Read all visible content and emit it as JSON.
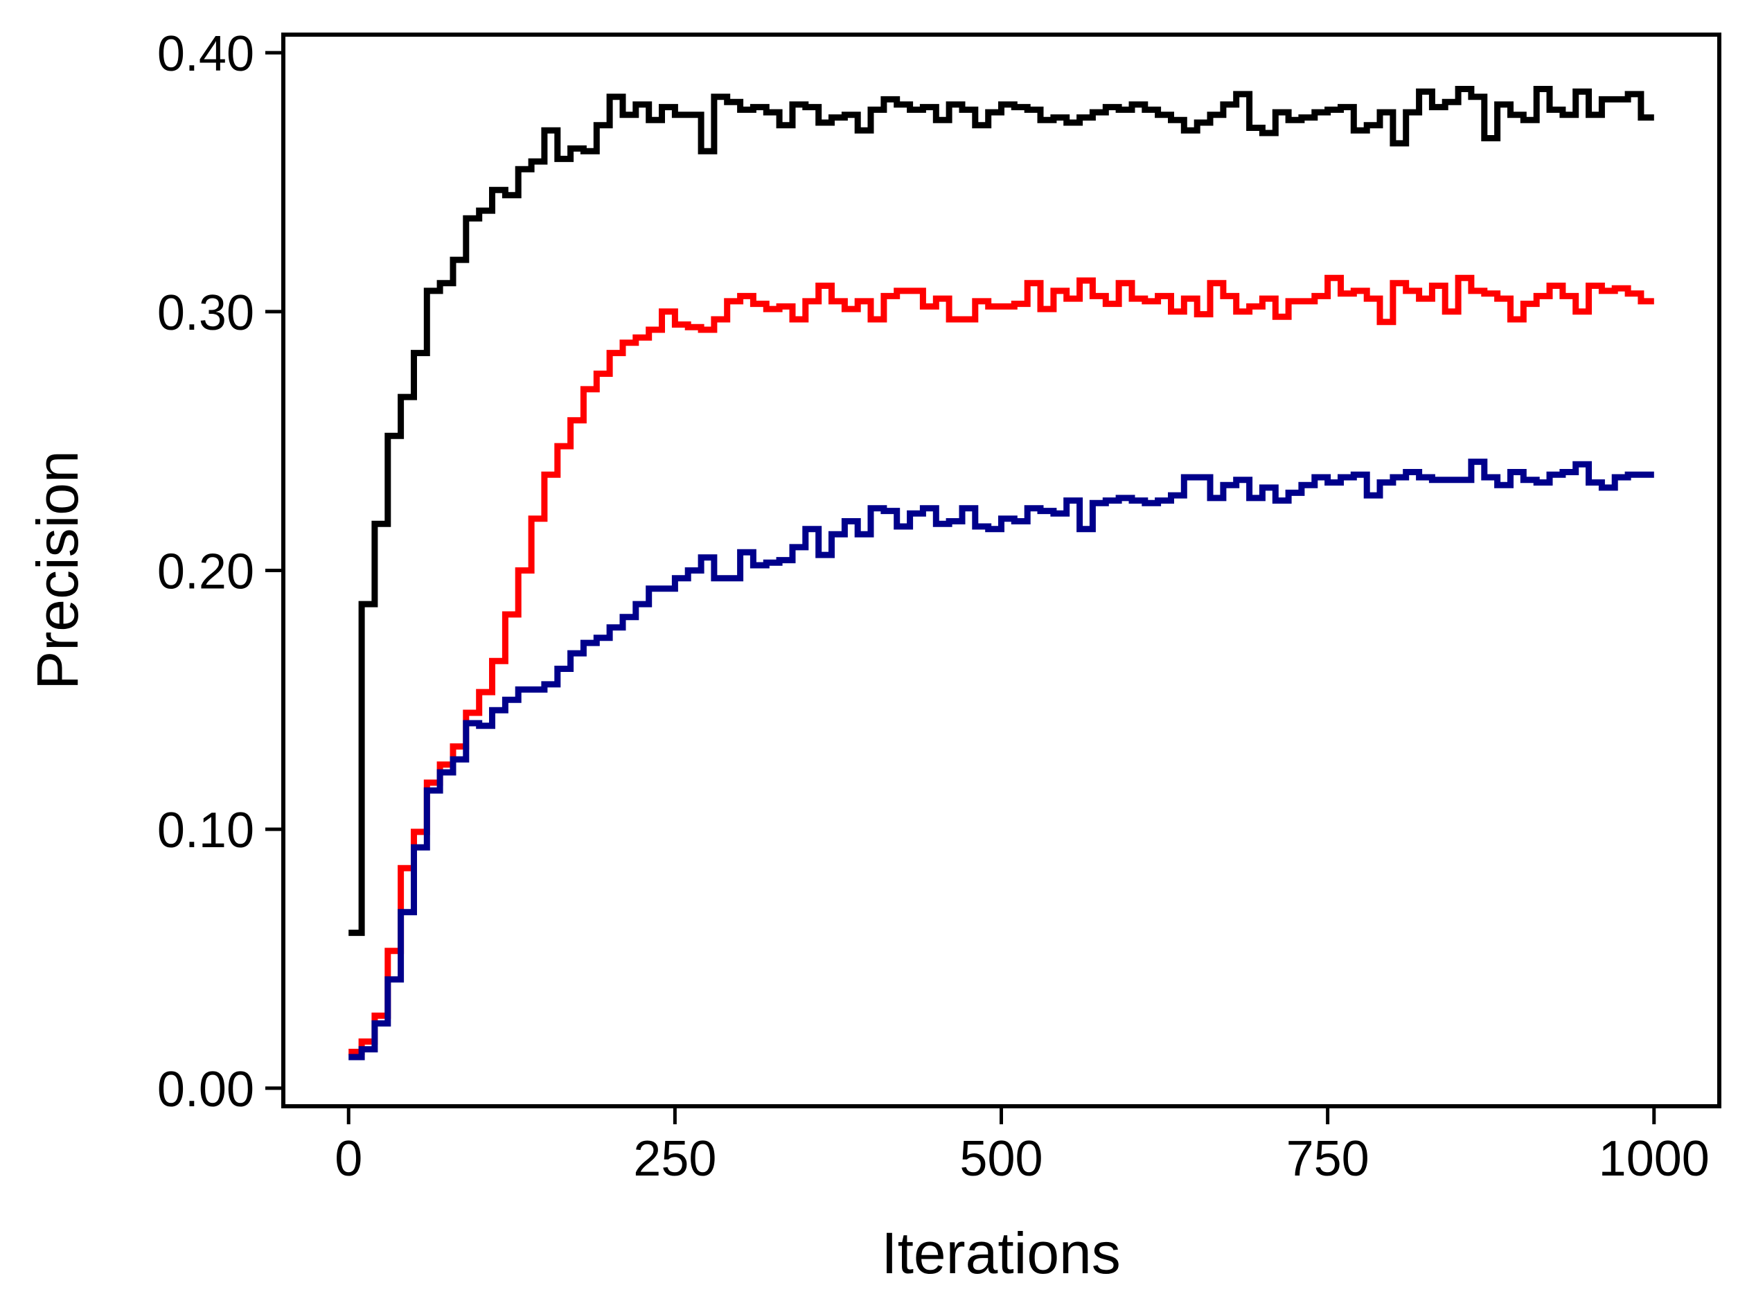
{
  "chart_data": {
    "type": "line",
    "step": true,
    "title": "",
    "xlabel": "Iterations",
    "ylabel": "Precision",
    "xlim": [
      -50,
      1050
    ],
    "ylim": [
      -0.007,
      0.407
    ],
    "grid": false,
    "legend": "none",
    "xticks": [
      0,
      250,
      500,
      750,
      1000
    ],
    "xtick_labels": [
      "0",
      "250",
      "500",
      "750",
      "1000"
    ],
    "yticks": [
      0.0,
      0.1,
      0.2,
      0.3,
      0.4
    ],
    "ytick_labels": [
      "0.00",
      "0.10",
      "0.20",
      "0.30",
      "0.40"
    ],
    "series": [
      {
        "color": "#000000",
        "points": [
          [
            0,
            0.06
          ],
          [
            10,
            0.187
          ],
          [
            20,
            0.218
          ],
          [
            30,
            0.252
          ],
          [
            40,
            0.267
          ],
          [
            50,
            0.284
          ],
          [
            60,
            0.308
          ],
          [
            70,
            0.311
          ],
          [
            80,
            0.32
          ],
          [
            90,
            0.336
          ],
          [
            100,
            0.339
          ],
          [
            110,
            0.347
          ],
          [
            120,
            0.345
          ],
          [
            130,
            0.355
          ],
          [
            140,
            0.358
          ],
          [
            150,
            0.37
          ],
          [
            160,
            0.359
          ],
          [
            170,
            0.363
          ],
          [
            180,
            0.362
          ],
          [
            190,
            0.372
          ],
          [
            200,
            0.383
          ],
          [
            210,
            0.376
          ],
          [
            220,
            0.38
          ],
          [
            230,
            0.374
          ],
          [
            240,
            0.379
          ],
          [
            250,
            0.376
          ],
          [
            270,
            0.362
          ],
          [
            280,
            0.383
          ],
          [
            290,
            0.381
          ],
          [
            300,
            0.378
          ],
          [
            310,
            0.379
          ],
          [
            320,
            0.377
          ],
          [
            330,
            0.372
          ],
          [
            340,
            0.38
          ],
          [
            350,
            0.379
          ],
          [
            360,
            0.373
          ],
          [
            370,
            0.375
          ],
          [
            380,
            0.376
          ],
          [
            390,
            0.37
          ],
          [
            400,
            0.378
          ],
          [
            410,
            0.382
          ],
          [
            420,
            0.38
          ],
          [
            430,
            0.378
          ],
          [
            440,
            0.379
          ],
          [
            450,
            0.374
          ],
          [
            460,
            0.38
          ],
          [
            470,
            0.378
          ],
          [
            480,
            0.372
          ],
          [
            490,
            0.377
          ],
          [
            500,
            0.38
          ],
          [
            510,
            0.379
          ],
          [
            520,
            0.378
          ],
          [
            530,
            0.374
          ],
          [
            540,
            0.375
          ],
          [
            550,
            0.373
          ],
          [
            560,
            0.375
          ],
          [
            570,
            0.377
          ],
          [
            580,
            0.379
          ],
          [
            590,
            0.378
          ],
          [
            600,
            0.38
          ],
          [
            610,
            0.378
          ],
          [
            620,
            0.376
          ],
          [
            630,
            0.374
          ],
          [
            640,
            0.37
          ],
          [
            650,
            0.373
          ],
          [
            660,
            0.376
          ],
          [
            670,
            0.38
          ],
          [
            680,
            0.384
          ],
          [
            690,
            0.371
          ],
          [
            700,
            0.369
          ],
          [
            710,
            0.377
          ],
          [
            720,
            0.374
          ],
          [
            730,
            0.375
          ],
          [
            740,
            0.377
          ],
          [
            750,
            0.378
          ],
          [
            760,
            0.379
          ],
          [
            770,
            0.37
          ],
          [
            780,
            0.372
          ],
          [
            790,
            0.377
          ],
          [
            800,
            0.365
          ],
          [
            810,
            0.377
          ],
          [
            820,
            0.385
          ],
          [
            830,
            0.379
          ],
          [
            840,
            0.381
          ],
          [
            850,
            0.386
          ],
          [
            860,
            0.383
          ],
          [
            870,
            0.367
          ],
          [
            880,
            0.38
          ],
          [
            890,
            0.376
          ],
          [
            900,
            0.374
          ],
          [
            910,
            0.386
          ],
          [
            920,
            0.378
          ],
          [
            930,
            0.376
          ],
          [
            940,
            0.385
          ],
          [
            950,
            0.376
          ],
          [
            960,
            0.382
          ],
          [
            980,
            0.384
          ],
          [
            990,
            0.375
          ],
          [
            1000,
            0.375
          ]
        ]
      },
      {
        "color": "#ff0000",
        "points": [
          [
            0,
            0.014
          ],
          [
            10,
            0.018
          ],
          [
            20,
            0.028
          ],
          [
            30,
            0.053
          ],
          [
            40,
            0.085
          ],
          [
            50,
            0.099
          ],
          [
            60,
            0.118
          ],
          [
            70,
            0.125
          ],
          [
            80,
            0.132
          ],
          [
            90,
            0.145
          ],
          [
            100,
            0.153
          ],
          [
            110,
            0.165
          ],
          [
            120,
            0.183
          ],
          [
            130,
            0.2
          ],
          [
            140,
            0.22
          ],
          [
            150,
            0.237
          ],
          [
            160,
            0.248
          ],
          [
            170,
            0.258
          ],
          [
            180,
            0.27
          ],
          [
            190,
            0.276
          ],
          [
            200,
            0.284
          ],
          [
            210,
            0.288
          ],
          [
            220,
            0.29
          ],
          [
            230,
            0.293
          ],
          [
            240,
            0.3
          ],
          [
            250,
            0.295
          ],
          [
            260,
            0.294
          ],
          [
            270,
            0.293
          ],
          [
            280,
            0.297
          ],
          [
            290,
            0.304
          ],
          [
            300,
            0.306
          ],
          [
            310,
            0.303
          ],
          [
            320,
            0.301
          ],
          [
            330,
            0.302
          ],
          [
            340,
            0.297
          ],
          [
            350,
            0.304
          ],
          [
            360,
            0.31
          ],
          [
            370,
            0.304
          ],
          [
            380,
            0.301
          ],
          [
            390,
            0.304
          ],
          [
            400,
            0.297
          ],
          [
            410,
            0.306
          ],
          [
            420,
            0.308
          ],
          [
            430,
            0.308
          ],
          [
            440,
            0.302
          ],
          [
            450,
            0.305
          ],
          [
            460,
            0.297
          ],
          [
            470,
            0.297
          ],
          [
            480,
            0.304
          ],
          [
            490,
            0.302
          ],
          [
            500,
            0.302
          ],
          [
            510,
            0.303
          ],
          [
            520,
            0.311
          ],
          [
            530,
            0.301
          ],
          [
            540,
            0.308
          ],
          [
            550,
            0.305
          ],
          [
            560,
            0.312
          ],
          [
            570,
            0.306
          ],
          [
            580,
            0.303
          ],
          [
            590,
            0.311
          ],
          [
            600,
            0.305
          ],
          [
            610,
            0.304
          ],
          [
            620,
            0.306
          ],
          [
            630,
            0.3
          ],
          [
            640,
            0.305
          ],
          [
            650,
            0.299
          ],
          [
            660,
            0.311
          ],
          [
            670,
            0.306
          ],
          [
            680,
            0.3
          ],
          [
            690,
            0.302
          ],
          [
            700,
            0.305
          ],
          [
            710,
            0.298
          ],
          [
            720,
            0.304
          ],
          [
            730,
            0.304
          ],
          [
            740,
            0.306
          ],
          [
            750,
            0.313
          ],
          [
            760,
            0.307
          ],
          [
            770,
            0.308
          ],
          [
            780,
            0.305
          ],
          [
            790,
            0.296
          ],
          [
            800,
            0.311
          ],
          [
            810,
            0.308
          ],
          [
            820,
            0.305
          ],
          [
            830,
            0.31
          ],
          [
            840,
            0.3
          ],
          [
            850,
            0.313
          ],
          [
            860,
            0.308
          ],
          [
            870,
            0.307
          ],
          [
            880,
            0.305
          ],
          [
            890,
            0.297
          ],
          [
            900,
            0.303
          ],
          [
            910,
            0.306
          ],
          [
            920,
            0.31
          ],
          [
            930,
            0.306
          ],
          [
            940,
            0.3
          ],
          [
            950,
            0.31
          ],
          [
            960,
            0.308
          ],
          [
            970,
            0.309
          ],
          [
            980,
            0.307
          ],
          [
            990,
            0.304
          ],
          [
            1000,
            0.304
          ]
        ]
      },
      {
        "color": "#00008b",
        "points": [
          [
            0,
            0.012
          ],
          [
            10,
            0.015
          ],
          [
            20,
            0.025
          ],
          [
            30,
            0.042
          ],
          [
            40,
            0.068
          ],
          [
            50,
            0.093
          ],
          [
            60,
            0.115
          ],
          [
            70,
            0.122
          ],
          [
            80,
            0.127
          ],
          [
            90,
            0.141
          ],
          [
            100,
            0.14
          ],
          [
            110,
            0.146
          ],
          [
            120,
            0.15
          ],
          [
            130,
            0.154
          ],
          [
            140,
            0.154
          ],
          [
            150,
            0.156
          ],
          [
            160,
            0.162
          ],
          [
            170,
            0.168
          ],
          [
            180,
            0.172
          ],
          [
            190,
            0.174
          ],
          [
            200,
            0.178
          ],
          [
            210,
            0.182
          ],
          [
            220,
            0.187
          ],
          [
            230,
            0.193
          ],
          [
            240,
            0.193
          ],
          [
            250,
            0.197
          ],
          [
            260,
            0.2
          ],
          [
            270,
            0.205
          ],
          [
            280,
            0.197
          ],
          [
            290,
            0.197
          ],
          [
            300,
            0.207
          ],
          [
            310,
            0.202
          ],
          [
            320,
            0.203
          ],
          [
            330,
            0.204
          ],
          [
            340,
            0.209
          ],
          [
            350,
            0.216
          ],
          [
            360,
            0.206
          ],
          [
            370,
            0.214
          ],
          [
            380,
            0.219
          ],
          [
            390,
            0.214
          ],
          [
            400,
            0.224
          ],
          [
            410,
            0.223
          ],
          [
            420,
            0.217
          ],
          [
            430,
            0.222
          ],
          [
            440,
            0.224
          ],
          [
            450,
            0.218
          ],
          [
            460,
            0.219
          ],
          [
            470,
            0.224
          ],
          [
            480,
            0.217
          ],
          [
            490,
            0.216
          ],
          [
            500,
            0.22
          ],
          [
            510,
            0.219
          ],
          [
            520,
            0.224
          ],
          [
            530,
            0.223
          ],
          [
            540,
            0.222
          ],
          [
            550,
            0.227
          ],
          [
            560,
            0.216
          ],
          [
            570,
            0.226
          ],
          [
            580,
            0.227
          ],
          [
            590,
            0.228
          ],
          [
            600,
            0.227
          ],
          [
            610,
            0.226
          ],
          [
            620,
            0.227
          ],
          [
            630,
            0.229
          ],
          [
            640,
            0.236
          ],
          [
            650,
            0.236
          ],
          [
            660,
            0.228
          ],
          [
            670,
            0.233
          ],
          [
            680,
            0.235
          ],
          [
            690,
            0.228
          ],
          [
            700,
            0.232
          ],
          [
            710,
            0.227
          ],
          [
            720,
            0.23
          ],
          [
            730,
            0.233
          ],
          [
            740,
            0.236
          ],
          [
            750,
            0.234
          ],
          [
            760,
            0.236
          ],
          [
            770,
            0.237
          ],
          [
            780,
            0.229
          ],
          [
            790,
            0.234
          ],
          [
            800,
            0.236
          ],
          [
            810,
            0.238
          ],
          [
            820,
            0.236
          ],
          [
            830,
            0.235
          ],
          [
            840,
            0.235
          ],
          [
            850,
            0.235
          ],
          [
            860,
            0.242
          ],
          [
            870,
            0.236
          ],
          [
            880,
            0.233
          ],
          [
            890,
            0.238
          ],
          [
            900,
            0.235
          ],
          [
            910,
            0.234
          ],
          [
            920,
            0.237
          ],
          [
            930,
            0.238
          ],
          [
            940,
            0.241
          ],
          [
            950,
            0.234
          ],
          [
            960,
            0.232
          ],
          [
            970,
            0.236
          ],
          [
            980,
            0.237
          ],
          [
            1000,
            0.237
          ]
        ]
      }
    ]
  }
}
